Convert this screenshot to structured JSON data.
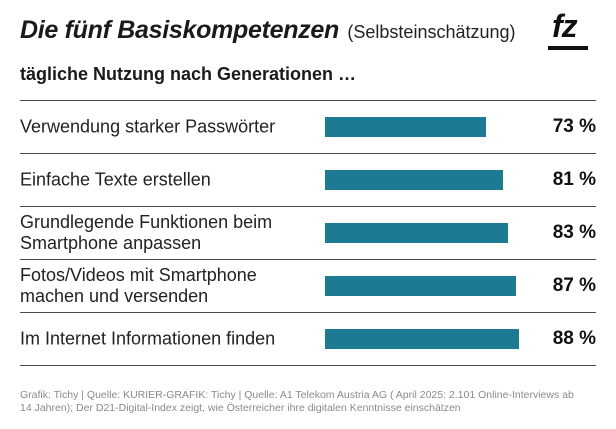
{
  "header": {
    "title": "Die fünf Basiskompetenzen",
    "title_note": "(Selbsteinschätzung)",
    "subtitle": "tägliche Nutzung nach Generationen …",
    "logo_text": "fz"
  },
  "chart_data": {
    "type": "bar",
    "orientation": "horizontal",
    "categories": [
      "Verwendung starker Passwörter",
      "Einfache Texte erstellen",
      "Grundlegende Funktionen beim Smartphone anpassen",
      "Fotos/Videos mit Smartphone machen und versenden",
      "Im Internet Informationen finden"
    ],
    "values": [
      73,
      81,
      83,
      87,
      88
    ],
    "value_labels": [
      "73 %",
      "81 %",
      "83 %",
      "87 %",
      "88 %"
    ],
    "xlim": [
      0,
      100
    ],
    "bar_color": "#1d7a93",
    "grid": false
  },
  "footer": {
    "source": "Grafik: Tichy | Quelle: KURIER-GRAFIK: Tichy | Quelle: A1 Telekom Austria AG ( April 2025: 2.101 Online-Interviews ab 14 Jahren); Der D21-Digital-Index zeigt, wie Österreicher ihre digitalen Kenntnisse einschätzen"
  }
}
